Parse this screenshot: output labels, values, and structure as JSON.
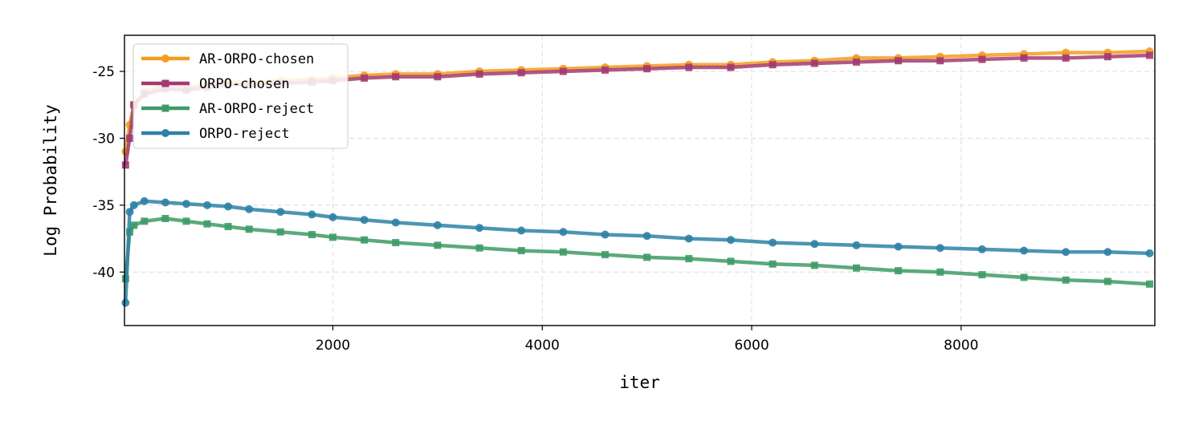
{
  "chart_data": {
    "type": "line",
    "title": "",
    "xlabel": "iter",
    "ylabel": "Log Probability",
    "xlim": [
      10,
      9850
    ],
    "ylim": [
      -44,
      -22.3
    ],
    "xticks": [
      2000,
      4000,
      6000,
      8000
    ],
    "xtick_labels": [
      "2000",
      "4000",
      "6000",
      "8000"
    ],
    "yticks": [
      -25,
      -30,
      -35,
      -40
    ],
    "ytick_labels": [
      "-25",
      "-30",
      "-35",
      "-40"
    ],
    "grid": true,
    "legend_position": "top-left",
    "series": [
      {
        "name": "AR-ORPO-chosen",
        "color": "#f39c1f",
        "marker": "circle",
        "x": [
          20,
          60,
          100,
          200,
          400,
          600,
          800,
          1000,
          1200,
          1500,
          1800,
          2000,
          2300,
          2600,
          3000,
          3400,
          3800,
          4200,
          4600,
          5000,
          5400,
          5800,
          6200,
          6600,
          7000,
          7400,
          7800,
          8200,
          8600,
          9000,
          9400,
          9800
        ],
        "y": [
          -31,
          -29,
          -27.5,
          -26.5,
          -26,
          -26.2,
          -26,
          -25.8,
          -25.8,
          -25.7,
          -25.6,
          -25.5,
          -25.3,
          -25.2,
          -25.2,
          -25,
          -24.9,
          -24.8,
          -24.7,
          -24.6,
          -24.5,
          -24.5,
          -24.3,
          -24.2,
          -24.0,
          -24.0,
          -23.9,
          -23.8,
          -23.7,
          -23.6,
          -23.6,
          -23.5
        ]
      },
      {
        "name": "ORPO-chosen",
        "color": "#a23b72",
        "marker": "square",
        "x": [
          20,
          60,
          100,
          200,
          400,
          600,
          800,
          1000,
          1200,
          1500,
          1800,
          2000,
          2300,
          2600,
          3000,
          3400,
          3800,
          4200,
          4600,
          5000,
          5400,
          5800,
          6200,
          6600,
          7000,
          7400,
          7800,
          8200,
          8600,
          9000,
          9400,
          9800
        ],
        "y": [
          -32,
          -30,
          -27.5,
          -26.7,
          -26.3,
          -26.4,
          -26.2,
          -26,
          -26,
          -25.9,
          -25.8,
          -25.7,
          -25.5,
          -25.4,
          -25.4,
          -25.2,
          -25.1,
          -25.0,
          -24.9,
          -24.8,
          -24.7,
          -24.7,
          -24.5,
          -24.4,
          -24.3,
          -24.2,
          -24.2,
          -24.1,
          -24.0,
          -24.0,
          -23.9,
          -23.8
        ]
      },
      {
        "name": "AR-ORPO-reject",
        "color": "#3e9b65",
        "marker": "square",
        "x": [
          20,
          60,
          100,
          200,
          400,
          600,
          800,
          1000,
          1200,
          1500,
          1800,
          2000,
          2300,
          2600,
          3000,
          3400,
          3800,
          4200,
          4600,
          5000,
          5400,
          5800,
          6200,
          6600,
          7000,
          7400,
          7800,
          8200,
          8600,
          9000,
          9400,
          9800
        ],
        "y": [
          -40.5,
          -37,
          -36.5,
          -36.2,
          -36.0,
          -36.2,
          -36.4,
          -36.6,
          -36.8,
          -37.0,
          -37.2,
          -37.4,
          -37.6,
          -37.8,
          -38.0,
          -38.2,
          -38.4,
          -38.5,
          -38.7,
          -38.9,
          -39.0,
          -39.2,
          -39.4,
          -39.5,
          -39.7,
          -39.9,
          -40.0,
          -40.2,
          -40.4,
          -40.6,
          -40.7,
          -40.9
        ]
      },
      {
        "name": "ORPO-reject",
        "color": "#2d82a6",
        "marker": "circle",
        "x": [
          20,
          60,
          100,
          200,
          400,
          600,
          800,
          1000,
          1200,
          1500,
          1800,
          2000,
          2300,
          2600,
          3000,
          3400,
          3800,
          4200,
          4600,
          5000,
          5400,
          5800,
          6200,
          6600,
          7000,
          7400,
          7800,
          8200,
          8600,
          9000,
          9400,
          9800
        ],
        "y": [
          -42.3,
          -35.5,
          -35.0,
          -34.7,
          -34.8,
          -34.9,
          -35.0,
          -35.1,
          -35.3,
          -35.5,
          -35.7,
          -35.9,
          -36.1,
          -36.3,
          -36.5,
          -36.7,
          -36.9,
          -37.0,
          -37.2,
          -37.3,
          -37.5,
          -37.6,
          -37.8,
          -37.9,
          -38.0,
          -38.1,
          -38.2,
          -38.3,
          -38.4,
          -38.5,
          -38.5,
          -38.6
        ]
      }
    ]
  }
}
